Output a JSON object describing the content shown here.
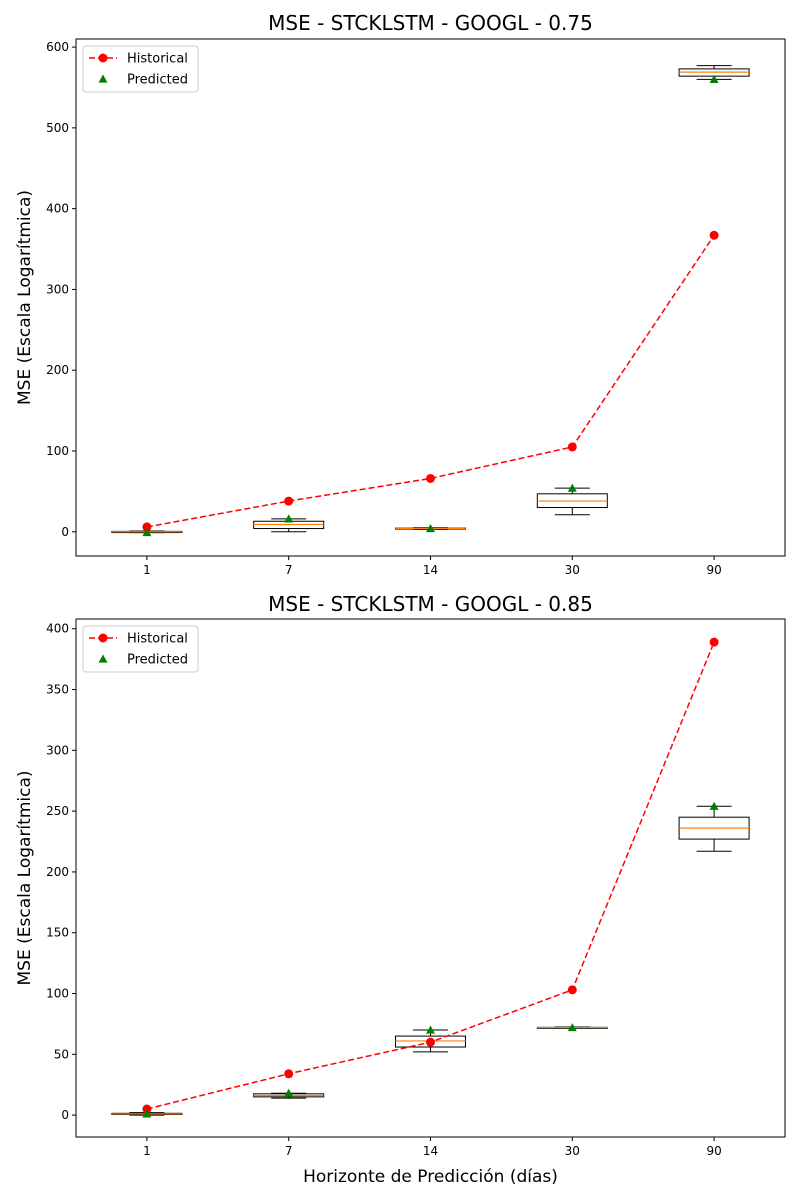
{
  "chart_data": [
    {
      "type": "box",
      "title": "MSE - STCKLSTM - GOOGL - 0.75",
      "xlabel": "",
      "ylabel": "MSE (Escala Logarítmica)",
      "categories": [
        "1",
        "7",
        "14",
        "30",
        "90"
      ],
      "yticks": [
        0,
        100,
        200,
        300,
        400,
        500,
        600
      ],
      "ylim": [
        -30,
        610
      ],
      "legend": {
        "position": "top-left",
        "entries": [
          "Historical",
          "Predicted"
        ]
      },
      "historical": [
        6,
        38,
        66,
        105,
        367
      ],
      "predicted": [
        -1,
        16,
        4,
        54,
        560
      ],
      "boxes": [
        {
          "low": -1,
          "q1": -1,
          "median": 0,
          "q3": 0.5,
          "high": 1
        },
        {
          "low": 0,
          "q1": 4,
          "median": 9,
          "q3": 13,
          "high": 16
        },
        {
          "low": 3,
          "q1": 3.5,
          "median": 4,
          "q3": 4.5,
          "high": 5
        },
        {
          "low": 21,
          "q1": 30,
          "median": 38,
          "q3": 47,
          "high": 54
        },
        {
          "low": 560,
          "q1": 564,
          "median": 569,
          "q3": 573,
          "high": 577
        }
      ]
    },
    {
      "type": "box",
      "title": "MSE - STCKLSTM - GOOGL - 0.85",
      "xlabel": "Horizonte de Predicción (días)",
      "ylabel": "MSE (Escala Logarítmica)",
      "categories": [
        "1",
        "7",
        "14",
        "30",
        "90"
      ],
      "yticks": [
        0,
        50,
        100,
        150,
        200,
        250,
        300,
        350,
        400
      ],
      "ylim": [
        -18,
        408
      ],
      "legend": {
        "position": "top-left",
        "entries": [
          "Historical",
          "Predicted"
        ]
      },
      "historical": [
        5,
        34,
        60,
        103,
        389
      ],
      "predicted": [
        1,
        18,
        70,
        72,
        254
      ],
      "boxes": [
        {
          "low": 0,
          "q1": 0.5,
          "median": 1,
          "q3": 1.5,
          "high": 2
        },
        {
          "low": 14,
          "q1": 15,
          "median": 16,
          "q3": 17.5,
          "high": 18
        },
        {
          "low": 52,
          "q1": 56,
          "median": 61,
          "q3": 65,
          "high": 70
        },
        {
          "low": 71.5,
          "q1": 71.8,
          "median": 72,
          "q3": 72.2,
          "high": 72.5
        },
        {
          "low": 217,
          "q1": 227,
          "median": 236,
          "q3": 245,
          "high": 254
        }
      ]
    }
  ]
}
